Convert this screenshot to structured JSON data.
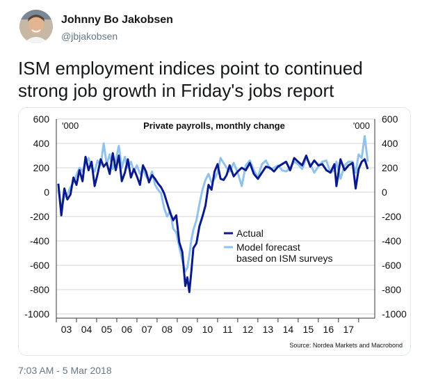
{
  "author": {
    "name": "Johnny Bo Jakobsen",
    "handle": "@jbjakobsen"
  },
  "tweet": {
    "text_line1": "ISM employment indices point to continued",
    "text_line2": "strong job growth in Friday's jobs report",
    "timestamp": "7:03 AM - 5 Mar 2018"
  },
  "colors": {
    "actual": "#0a1a8c",
    "forecast": "#8fc3ee",
    "grid": "#d4d4d4"
  },
  "chart_data": {
    "type": "line",
    "title": "Private payrolls, monthly change",
    "unit_left": "'000",
    "unit_right": "'000",
    "source": "Source: Nordea Markets and Macrobond",
    "ylim": [
      -1000,
      600
    ],
    "yticks": [
      600,
      400,
      200,
      0,
      -200,
      -400,
      -600,
      -800,
      -1000
    ],
    "ytick_labels": [
      "600",
      "400",
      "200",
      "0",
      "-200",
      "-400",
      "-600",
      "-800",
      "-1000"
    ],
    "xlim": [
      2002.5,
      2018.3
    ],
    "xtick_labels": [
      "03",
      "04",
      "05",
      "06",
      "07",
      "08",
      "09",
      "10",
      "11",
      "12",
      "13",
      "14",
      "15",
      "16",
      "17"
    ],
    "xtick_positions": [
      2003,
      2004,
      2005,
      2006,
      2007,
      2008,
      2009,
      2010,
      2011,
      2012,
      2013,
      2014,
      2015,
      2016,
      2017
    ],
    "legend": [
      "Actual",
      "Model forecast",
      "based on ISM surveys"
    ],
    "legend_position": "center",
    "series": [
      {
        "name": "Actual",
        "x": [
          2002.6,
          2002.75,
          2002.9,
          2003.05,
          2003.2,
          2003.35,
          2003.5,
          2003.65,
          2003.8,
          2003.95,
          2004.1,
          2004.25,
          2004.4,
          2004.55,
          2004.7,
          2004.85,
          2005.0,
          2005.15,
          2005.3,
          2005.45,
          2005.6,
          2005.75,
          2005.9,
          2006.05,
          2006.2,
          2006.35,
          2006.5,
          2006.65,
          2006.8,
          2006.95,
          2007.1,
          2007.25,
          2007.4,
          2007.55,
          2007.7,
          2007.85,
          2008.0,
          2008.15,
          2008.3,
          2008.45,
          2008.6,
          2008.75,
          2008.9,
          2009.0,
          2009.1,
          2009.2,
          2009.3,
          2009.45,
          2009.6,
          2009.75,
          2009.9,
          2010.05,
          2010.2,
          2010.35,
          2010.5,
          2010.65,
          2010.8,
          2010.95,
          2011.1,
          2011.3,
          2011.5,
          2011.7,
          2011.9,
          2012.1,
          2012.3,
          2012.5,
          2012.7,
          2012.9,
          2013.1,
          2013.3,
          2013.5,
          2013.7,
          2013.9,
          2014.1,
          2014.3,
          2014.5,
          2014.7,
          2014.9,
          2015.1,
          2015.3,
          2015.5,
          2015.7,
          2015.9,
          2016.1,
          2016.3,
          2016.4,
          2016.6,
          2016.8,
          2017.0,
          2017.2,
          2017.35,
          2017.5,
          2017.65,
          2017.8,
          2017.95
        ],
        "y": [
          70,
          -190,
          30,
          -60,
          -20,
          120,
          60,
          180,
          90,
          290,
          180,
          250,
          50,
          150,
          270,
          210,
          240,
          150,
          320,
          180,
          300,
          90,
          160,
          270,
          120,
          190,
          130,
          60,
          220,
          170,
          80,
          140,
          110,
          70,
          40,
          -10,
          -90,
          -170,
          -230,
          -190,
          -410,
          -490,
          -770,
          -700,
          -820,
          -650,
          -460,
          -420,
          -280,
          -200,
          -110,
          60,
          20,
          170,
          230,
          110,
          100,
          140,
          220,
          130,
          170,
          200,
          180,
          240,
          150,
          110,
          160,
          210,
          200,
          170,
          210,
          230,
          250,
          180,
          280,
          250,
          220,
          300,
          210,
          260,
          220,
          230,
          180,
          160,
          230,
          50,
          270,
          180,
          220,
          240,
          30,
          190,
          250,
          270,
          190
        ]
      },
      {
        "name": "Model forecast",
        "x": [
          2002.6,
          2002.75,
          2002.9,
          2003.05,
          2003.2,
          2003.35,
          2003.5,
          2003.65,
          2003.8,
          2003.95,
          2004.1,
          2004.25,
          2004.4,
          2004.55,
          2004.7,
          2004.85,
          2005.0,
          2005.15,
          2005.3,
          2005.45,
          2005.6,
          2005.75,
          2005.9,
          2006.05,
          2006.2,
          2006.35,
          2006.5,
          2006.65,
          2006.8,
          2006.95,
          2007.1,
          2007.25,
          2007.4,
          2007.55,
          2007.7,
          2007.85,
          2008.0,
          2008.15,
          2008.3,
          2008.45,
          2008.6,
          2008.75,
          2008.9,
          2009.0,
          2009.1,
          2009.2,
          2009.3,
          2009.45,
          2009.6,
          2009.75,
          2009.9,
          2010.05,
          2010.2,
          2010.35,
          2010.5,
          2010.65,
          2010.8,
          2010.95,
          2011.1,
          2011.3,
          2011.5,
          2011.7,
          2011.9,
          2012.1,
          2012.3,
          2012.5,
          2012.7,
          2012.9,
          2013.1,
          2013.3,
          2013.5,
          2013.7,
          2013.9,
          2014.1,
          2014.3,
          2014.5,
          2014.7,
          2014.9,
          2015.1,
          2015.3,
          2015.5,
          2015.7,
          2015.9,
          2016.1,
          2016.3,
          2016.4,
          2016.6,
          2016.8,
          2017.0,
          2017.2,
          2017.35,
          2017.5,
          2017.65,
          2017.8,
          2017.95
        ],
        "y": [
          20,
          -130,
          -40,
          -20,
          40,
          80,
          140,
          200,
          170,
          240,
          280,
          200,
          170,
          260,
          220,
          400,
          230,
          310,
          190,
          260,
          380,
          200,
          290,
          200,
          250,
          170,
          220,
          150,
          190,
          130,
          100,
          170,
          60,
          20,
          -10,
          -130,
          -200,
          -150,
          -300,
          -330,
          -450,
          -560,
          -650,
          -620,
          -520,
          -390,
          -310,
          -230,
          -100,
          20,
          100,
          150,
          80,
          110,
          160,
          280,
          240,
          200,
          170,
          240,
          160,
          50,
          220,
          260,
          180,
          120,
          230,
          260,
          190,
          200,
          220,
          180,
          170,
          200,
          250,
          230,
          190,
          280,
          230,
          160,
          210,
          250,
          260,
          160,
          180,
          250,
          110,
          220,
          250,
          250,
          160,
          310,
          280,
          460,
          250
        ]
      }
    ]
  }
}
